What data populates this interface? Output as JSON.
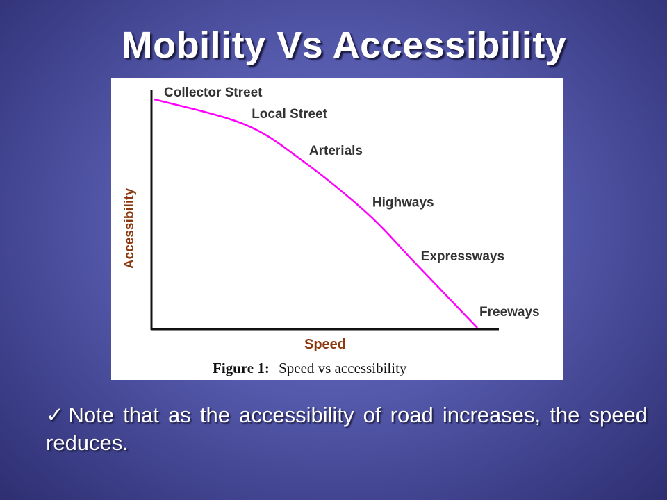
{
  "slide": {
    "title": "Mobility Vs Accessibility",
    "note": "Note that as the accessibility of road increases, the speed reduces.",
    "check_icon": "✓"
  },
  "colors": {
    "curve": "#ff00ff",
    "axis_label": "#8b3a10",
    "point_label": "#333333"
  },
  "chart_data": {
    "type": "line",
    "caption_bold": "Figure 1:",
    "caption_text": "Speed vs accessibility",
    "xlabel": "Speed",
    "ylabel": "Accessibility",
    "xlim": [
      0,
      100
    ],
    "ylim": [
      0,
      100
    ],
    "points": [
      {
        "label": "Collector Street",
        "x": 0,
        "y": 100
      },
      {
        "label": "Local Street",
        "x": 28,
        "y": 89
      },
      {
        "label": "Arterials",
        "x": 46,
        "y": 73
      },
      {
        "label": "Highways",
        "x": 66,
        "y": 50
      },
      {
        "label": "Expressways",
        "x": 81,
        "y": 28
      },
      {
        "label": "Freeways",
        "x": 100,
        "y": 0
      }
    ]
  }
}
